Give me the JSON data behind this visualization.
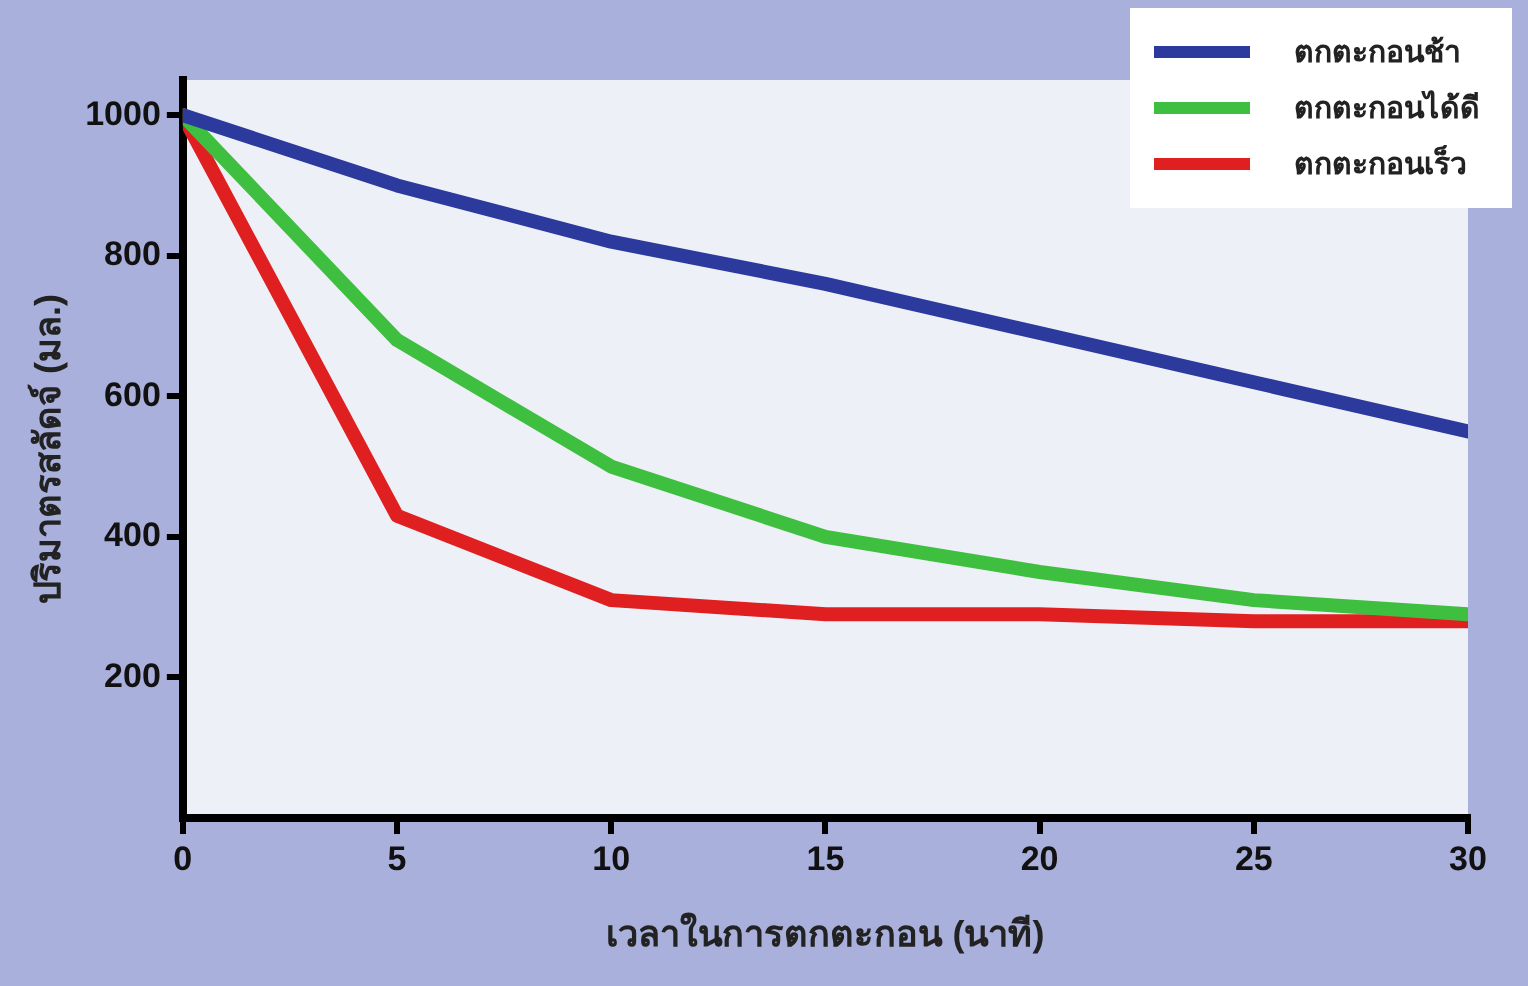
{
  "chart_data": {
    "type": "line",
    "xlabel": "เวลาในการตกตะกอน (นาที)",
    "ylabel": "ปริมาตรสลัดจ์ (มล.)",
    "x": [
      0,
      5,
      10,
      15,
      20,
      25,
      30
    ],
    "series": [
      {
        "name": "ตกตะกอนช้า",
        "color": "#2b3a9c",
        "values": [
          1000,
          900,
          820,
          760,
          690,
          620,
          550
        ]
      },
      {
        "name": "ตกตะกอนได้ดี",
        "color": "#3fbf3f",
        "values": [
          1000,
          680,
          500,
          400,
          350,
          310,
          290
        ]
      },
      {
        "name": "ตกตะกอนเร็ว",
        "color": "#e02020",
        "values": [
          1000,
          430,
          310,
          290,
          290,
          280,
          280
        ]
      }
    ],
    "xlim": [
      0,
      30
    ],
    "xticks": [
      0,
      5,
      10,
      15,
      20,
      25,
      30
    ],
    "ylim": [
      0,
      1050
    ],
    "yticks": [
      200,
      400,
      600,
      800,
      1000
    ],
    "grid": false,
    "legend": "top right",
    "marker": "none",
    "line_style": "solid"
  }
}
